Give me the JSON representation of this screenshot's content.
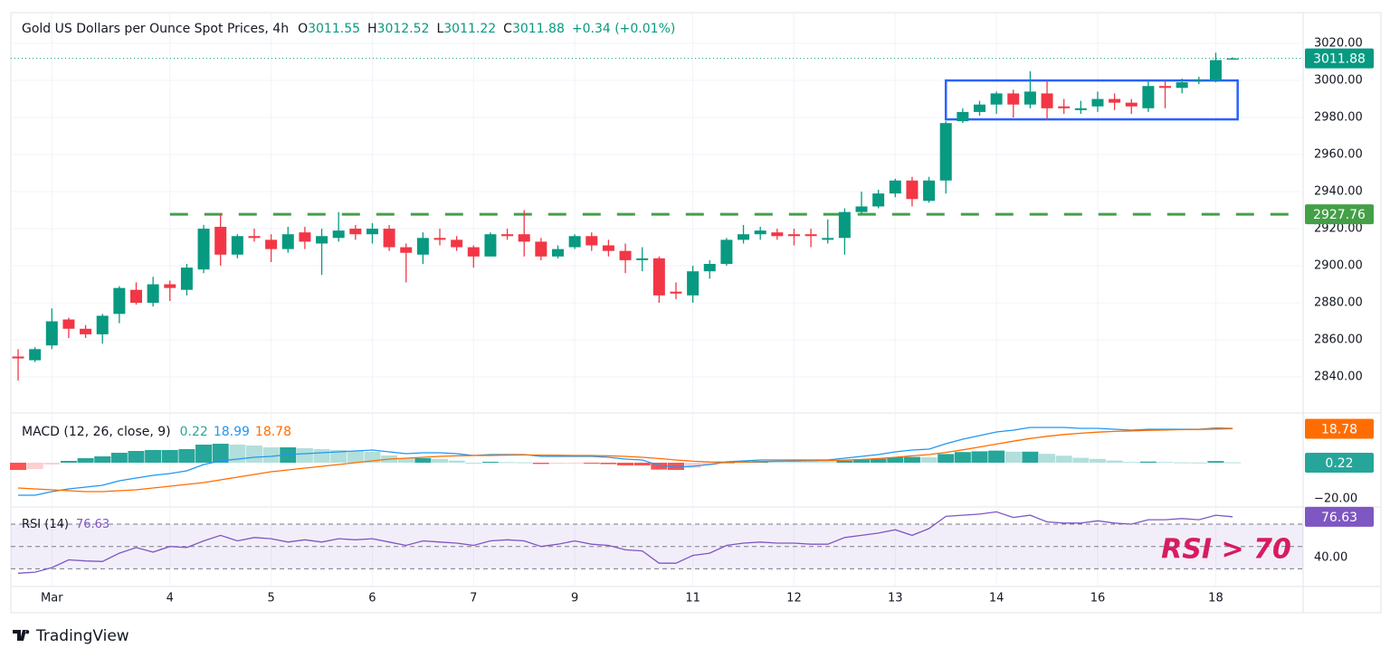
{
  "chart_data": [
    {
      "type": "candlestick",
      "title": "Gold US Dollars per Ounce Spot Prices, 4h",
      "legend_labels": [
        "O",
        "H",
        "L",
        "C"
      ],
      "change": "+0.34 (+0.01%)",
      "up_color": "#089981",
      "down_color": "#f23645",
      "open": [
        2851,
        2849,
        2857,
        2871,
        2866,
        2863,
        2874,
        2887,
        2880,
        2890,
        2887,
        2898,
        2921,
        2906,
        2916,
        2914,
        2909,
        2918,
        2912,
        2915,
        2920,
        2917,
        2920,
        2910,
        2906,
        2915,
        2914,
        2910,
        2905,
        2917,
        2917,
        2913,
        2905,
        2910,
        2916,
        2911,
        2908,
        2903,
        2904,
        2886,
        2884,
        2897,
        2901,
        2914,
        2917,
        2918,
        2917,
        2917,
        2914,
        2915,
        2929,
        2932,
        2939,
        2946,
        2935,
        2946,
        2978,
        2983,
        2987,
        2993,
        2987,
        2993,
        2986,
        2984,
        2986,
        2990,
        2988,
        2985,
        2997,
        2996,
        3000,
        3000,
        3011.55
      ],
      "high": [
        2855,
        2856,
        2877,
        2872,
        2868,
        2874,
        2889,
        2891,
        2894,
        2892,
        2901,
        2922,
        2928,
        2917,
        2920,
        2917,
        2921,
        2921,
        2920,
        2929,
        2922,
        2923,
        2922,
        2912,
        2918,
        2920,
        2916,
        2911,
        2918,
        2920,
        2930,
        2915,
        2911,
        2917,
        2918,
        2914,
        2912,
        2910,
        2905,
        2891,
        2900,
        2903,
        2915,
        2922,
        2921,
        2920,
        2920,
        2920,
        2925,
        2931,
        2940,
        2941,
        2947,
        2948,
        2948,
        2978,
        2985,
        2989,
        2994,
        2995,
        3005,
        3000,
        2990,
        2989,
        2994,
        2993,
        2990,
        3000,
        3000,
        3001,
        3002,
        3015,
        3012.52
      ],
      "low": [
        2838,
        2848,
        2855,
        2861,
        2861,
        2858,
        2869,
        2879,
        2878,
        2881,
        2884,
        2896,
        2900,
        2904,
        2913,
        2902,
        2907,
        2909,
        2895,
        2913,
        2914,
        2912,
        2908,
        2891,
        2901,
        2911,
        2908,
        2899,
        2905,
        2914,
        2905,
        2903,
        2904,
        2909,
        2908,
        2905,
        2896,
        2897,
        2880,
        2882,
        2880,
        2893,
        2900,
        2912,
        2914,
        2914,
        2911,
        2910,
        2912,
        2906,
        2928,
        2931,
        2937,
        2932,
        2934,
        2939,
        2977,
        2981,
        2982,
        2980,
        2985,
        2979,
        2982,
        2982,
        2983,
        2984,
        2982,
        2983,
        2985,
        2993,
        2998,
        2999,
        3011.22
      ],
      "close": [
        2850,
        2855,
        2870,
        2866,
        2863,
        2873,
        2888,
        2880,
        2890,
        2888,
        2899,
        2920,
        2906,
        2916,
        2915,
        2909,
        2917,
        2913,
        2916,
        2919,
        2917,
        2920,
        2910,
        2907,
        2915,
        2914,
        2910,
        2905,
        2917,
        2916,
        2913,
        2905,
        2909,
        2916,
        2911,
        2908,
        2903,
        2904,
        2884,
        2885,
        2897,
        2901,
        2914,
        2917,
        2919,
        2916,
        2916,
        2916,
        2915,
        2929,
        2932,
        2939,
        2946,
        2936,
        2946,
        2977,
        2983,
        2987,
        2993,
        2987,
        2994,
        2985,
        2985,
        2985,
        2990,
        2988,
        2986,
        2997,
        2996,
        2999,
        3000,
        3011,
        3011.88
      ],
      "xlim": [
        -0.43,
        76.18
      ],
      "xticks": [
        {
          "value": 2,
          "label": "Mar"
        },
        {
          "value": 9,
          "label": "4"
        },
        {
          "value": 15,
          "label": "5"
        },
        {
          "value": 21,
          "label": "6"
        },
        {
          "value": 27,
          "label": "7"
        },
        {
          "value": 33,
          "label": "9"
        },
        {
          "value": 40,
          "label": "11"
        },
        {
          "value": 46,
          "label": "12"
        },
        {
          "value": 52,
          "label": "13"
        },
        {
          "value": 58,
          "label": "14"
        },
        {
          "value": 64,
          "label": "16"
        },
        {
          "value": 71,
          "label": "18"
        }
      ],
      "ylim": [
        2821.5,
        3036.6
      ],
      "yticks": [
        {
          "value": 3020,
          "label": "3020.00"
        },
        {
          "value": 3000,
          "label": "3000.00"
        },
        {
          "value": 2980,
          "label": "2980.00"
        },
        {
          "value": 2960,
          "label": "2960.00"
        },
        {
          "value": 2940,
          "label": "2940.00"
        },
        {
          "value": 2920,
          "label": "2920.00"
        },
        {
          "value": 2900,
          "label": "2900.00"
        },
        {
          "value": 2880,
          "label": "2880.00"
        },
        {
          "value": 2860,
          "label": "2860.00"
        },
        {
          "value": 2840,
          "label": "2840.00"
        }
      ],
      "grid": true,
      "level": {
        "value": 2927.76,
        "start": 9,
        "color": "#43a047"
      },
      "box": {
        "x": [
          55,
          72.3
        ],
        "y": [
          2979,
          3000
        ],
        "color": "#2962ff"
      },
      "brand": "TradingView"
    },
    {
      "type": "macd",
      "title": "MACD (12, 26, close, 9)",
      "series": [
        {
          "name": "Histogram",
          "color": "#26a69a",
          "values": [
            -4,
            -3.5,
            -1,
            1,
            2.5,
            3.5,
            5.5,
            6.5,
            7,
            7,
            7.5,
            10,
            10.5,
            10,
            9.5,
            8.5,
            8.5,
            8,
            7.5,
            7,
            6.5,
            6,
            4,
            2.5,
            2.5,
            2,
            1.2,
            0,
            0.5,
            0.3,
            0.2,
            -0.7,
            -0.6,
            -0.5,
            -0.5,
            -0.8,
            -1.5,
            -1.5,
            -3.8,
            -4,
            -2.8,
            -1.4,
            0.2,
            0.6,
            0.9,
            0.7,
            0.6,
            0.5,
            0.4,
            1.1,
            1.7,
            2.2,
            3,
            3.2,
            3,
            4.8,
            5.9,
            6.3,
            6.7,
            6.1,
            6.1,
            4.9,
            3.9,
            2.7,
            2.1,
            1.2,
            0.4,
            0.6,
            0.4,
            0.2,
            0.1,
            0.9,
            0.22
          ]
        },
        {
          "name": "MACD",
          "color": "#2196f3",
          "values": [
            -18,
            -18,
            -16,
            -14.5,
            -13.5,
            -12.5,
            -10,
            -8.5,
            -7,
            -6,
            -4.5,
            -1,
            1,
            2,
            3,
            3.5,
            4.5,
            5,
            5.5,
            6,
            6.5,
            7,
            6,
            5,
            5.5,
            5.5,
            5,
            4,
            4.5,
            4.5,
            4.5,
            3.5,
            3.5,
            3.5,
            3.5,
            3,
            2,
            1.5,
            -1.5,
            -2.5,
            -2,
            -1,
            0.5,
            1,
            1.5,
            1.5,
            1.5,
            1.5,
            1.5,
            2.5,
            3.5,
            4.5,
            6,
            7,
            7.5,
            10.5,
            13,
            15,
            17,
            18,
            19.5,
            19.5,
            19.5,
            19,
            19,
            18.5,
            18,
            18.5,
            18.5,
            18.5,
            18.5,
            19.2,
            18.99
          ]
        },
        {
          "name": "Signal",
          "color": "#ff6d00",
          "values": [
            -14,
            -14.5,
            -15,
            -15.5,
            -16,
            -16,
            -15.5,
            -15,
            -14,
            -13,
            -12,
            -11,
            -9.5,
            -8,
            -6.5,
            -5,
            -4,
            -3,
            -2,
            -1,
            0,
            1,
            2,
            2.5,
            3,
            3.5,
            3.8,
            4,
            4,
            4.2,
            4.3,
            4.2,
            4.1,
            4,
            4,
            3.8,
            3.5,
            3,
            2.3,
            1.5,
            0.8,
            0.4,
            0.3,
            0.4,
            0.6,
            0.8,
            0.9,
            1,
            1.1,
            1.4,
            1.8,
            2.3,
            3,
            3.8,
            4.5,
            5.7,
            7.1,
            8.7,
            10.3,
            11.9,
            13.4,
            14.6,
            15.6,
            16.3,
            16.9,
            17.3,
            17.6,
            17.9,
            18.1,
            18.3,
            18.4,
            18.6,
            18.78
          ]
        }
      ],
      "ylim": [
        -24,
        27
      ],
      "yticks": [
        {
          "value": -20,
          "label": "−20.00"
        }
      ]
    },
    {
      "type": "line",
      "title": "RSI (14)",
      "series": [
        {
          "name": "RSI",
          "color": "#7e57c2",
          "values": [
            26,
            27,
            31,
            38,
            37,
            36.5,
            44,
            49,
            45,
            50,
            49,
            55,
            60,
            55,
            58,
            57,
            54,
            56,
            54,
            57,
            56,
            57,
            54,
            51,
            55,
            54,
            53,
            51,
            55,
            56,
            55,
            50,
            52,
            55,
            52,
            51,
            47,
            46,
            35,
            35,
            42,
            44,
            51,
            53,
            54,
            53,
            53,
            52,
            52,
            58,
            60,
            62,
            65,
            60,
            66,
            77,
            78,
            79,
            81,
            76,
            78,
            72,
            71,
            71,
            73,
            71,
            70,
            74,
            74,
            75,
            74,
            78,
            76.63
          ]
        }
      ],
      "bands": [
        70,
        50,
        30
      ],
      "ylim": [
        14.9,
        84.6
      ],
      "yticks": [
        {
          "value": 40,
          "label": "40.00"
        }
      ],
      "annotation": "RSI > 70",
      "annotation_color": "#d81b60"
    }
  ]
}
